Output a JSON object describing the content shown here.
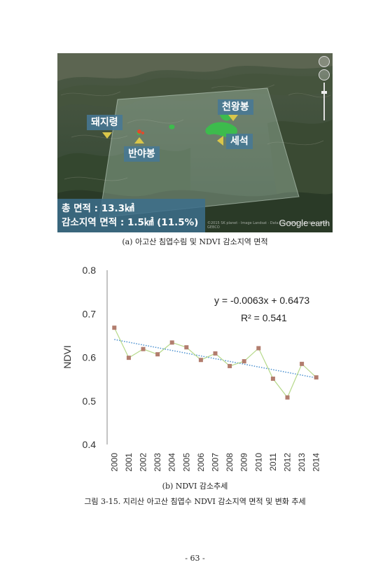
{
  "figure_a": {
    "labels": {
      "dwaejiryeong": "돼지령",
      "banyabong": "반야봉",
      "cheonwangbong": "천왕봉",
      "seseok": "세석"
    },
    "stats": {
      "total_area": "총 면적 : 13.3㎢",
      "decrease_area": "감소지역 면적 : 1.5㎢ (11.5%)"
    },
    "logo": {
      "google": "Google",
      "earth": "earth"
    },
    "copyright": "©2015 SK planet · Image Landsat · Data SIO, NOAA, U.S. Navy, NGA, GEBCO",
    "caption": "(a) 아고산 침엽수림 및 NDVI 감소지역 면적",
    "colors": {
      "overlay": "#b9d6c4",
      "label_bg": "#4678a0",
      "marker": "#d9c64a",
      "ndvi_patch": "#39c24a"
    }
  },
  "chart_data": {
    "type": "scatter",
    "categories": [
      "2000",
      "2001",
      "2002",
      "2003",
      "2004",
      "2005",
      "2006",
      "2007",
      "2008",
      "2009",
      "2010",
      "2011",
      "2012",
      "2013",
      "2014"
    ],
    "series": [
      {
        "values": [
          0.668,
          0.599,
          0.619,
          0.607,
          0.634,
          0.623,
          0.594,
          0.609,
          0.58,
          0.591,
          0.621,
          0.551,
          0.508,
          0.585,
          0.554
        ]
      }
    ],
    "trendline": {
      "slope": -0.0063,
      "intercept": 0.6473
    },
    "equation": "y = -0.0063x + 0.6473",
    "r_squared": "R² = 0.541",
    "xlabel": "",
    "ylabel": "NDVI",
    "ylim": [
      0.4,
      0.8
    ],
    "yticks": [
      "0.8",
      "0.7",
      "0.6",
      "0.5",
      "0.4"
    ],
    "ytick_values": [
      0.8,
      0.7,
      0.6,
      0.5,
      0.4
    ],
    "grid": false,
    "colors": {
      "marker": "#b27d6e",
      "line": "#b6d98a",
      "trend": "#4a90d0",
      "axis": "#888888"
    }
  },
  "caption_b": "(b) NDVI 감소추세",
  "figure_caption": "그림 3-15. 지리산 아고산 침엽수 NDVI 감소지역 면적 및 변화 추세",
  "page_number": "- 63 -"
}
